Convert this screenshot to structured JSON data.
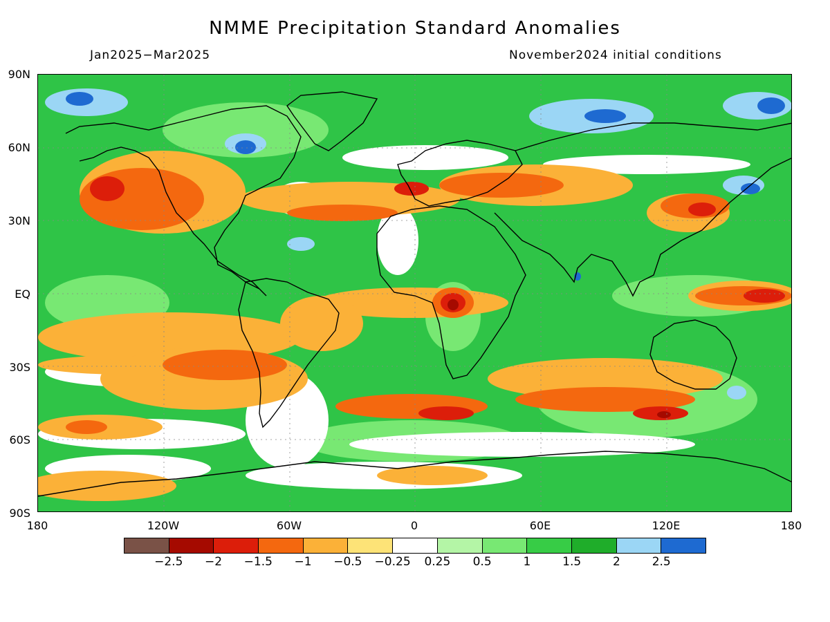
{
  "header": {
    "title": "NMME Precipitation Standard Anomalies",
    "period": "Jan2025−Mar2025",
    "init": "November2024 initial conditions"
  },
  "axes": {
    "lat_labels": [
      "90N",
      "60N",
      "30N",
      "EQ",
      "30S",
      "60S",
      "90S"
    ],
    "lon_labels": [
      "180",
      "120W",
      "60W",
      "0",
      "60E",
      "120E",
      "180"
    ]
  },
  "legend": {
    "labels": [
      "−2.5",
      "−2",
      "−1.5",
      "−1",
      "−0.5",
      "−0.25",
      "0.25",
      "0.5",
      "1",
      "1.5",
      "2",
      "2.5"
    ],
    "colors": [
      "#7a5247",
      "#a50a00",
      "#dc1e0a",
      "#f4680f",
      "#fbb138",
      "#fde377",
      "#ffffff",
      "#b4f5a6",
      "#78e873",
      "#37cc46",
      "#1fad2a",
      "#9bd6f5",
      "#1e6ad1"
    ]
  }
}
